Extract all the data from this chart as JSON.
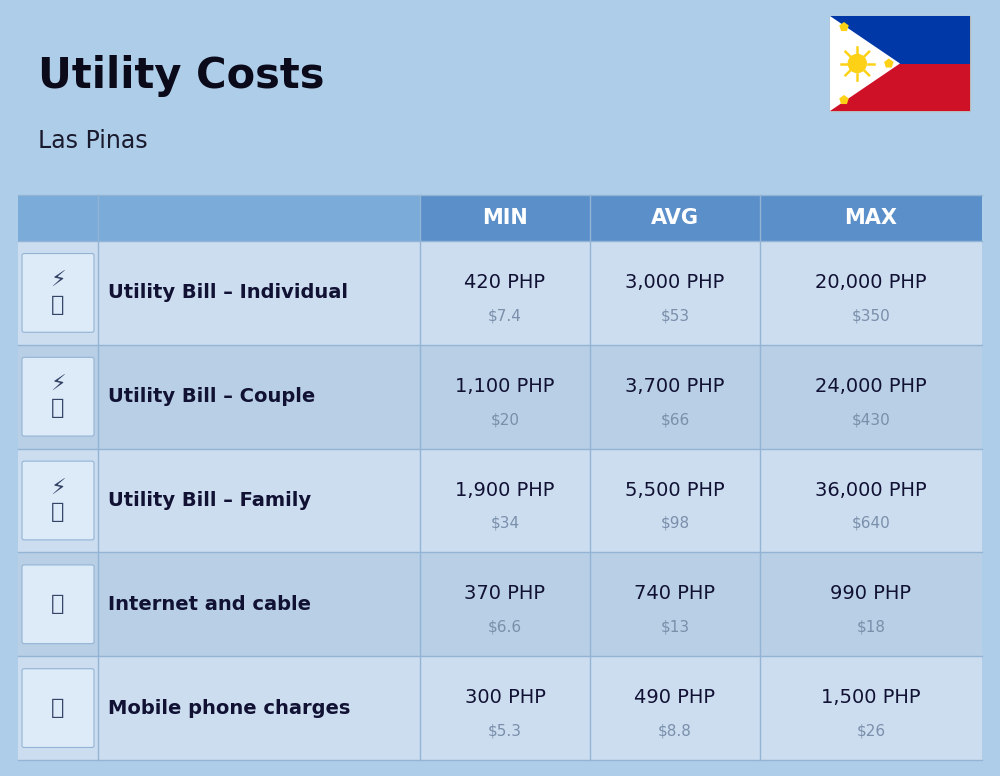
{
  "title": "Utility Costs",
  "subtitle": "Las Pinas",
  "bg_color": "#aecde8",
  "header_bg": "#5b8fc9",
  "header_text_color": "#ffffff",
  "row_bg_light": "#ccddf0",
  "row_bg_dark": "#b8cfe6",
  "cell_line_color": "#93b4d4",
  "col_headers": [
    "MIN",
    "AVG",
    "MAX"
  ],
  "rows": [
    {
      "label": "Utility Bill – Individual",
      "min_php": "420 PHP",
      "min_usd": "$7.4",
      "avg_php": "3,000 PHP",
      "avg_usd": "$53",
      "max_php": "20,000 PHP",
      "max_usd": "$350"
    },
    {
      "label": "Utility Bill – Couple",
      "min_php": "1,100 PHP",
      "min_usd": "$20",
      "avg_php": "3,700 PHP",
      "avg_usd": "$66",
      "max_php": "24,000 PHP",
      "max_usd": "$430"
    },
    {
      "label": "Utility Bill – Family",
      "min_php": "1,900 PHP",
      "min_usd": "$34",
      "avg_php": "5,500 PHP",
      "avg_usd": "$98",
      "max_php": "36,000 PHP",
      "max_usd": "$640"
    },
    {
      "label": "Internet and cable",
      "min_php": "370 PHP",
      "min_usd": "$6.6",
      "avg_php": "740 PHP",
      "avg_usd": "$13",
      "max_php": "990 PHP",
      "max_usd": "$18"
    },
    {
      "label": "Mobile phone charges",
      "min_php": "300 PHP",
      "min_usd": "$5.3",
      "avg_php": "490 PHP",
      "avg_usd": "$8.8",
      "max_php": "1,500 PHP",
      "max_usd": "$26"
    }
  ],
  "title_fontsize": 30,
  "subtitle_fontsize": 17,
  "header_fontsize": 15,
  "label_fontsize": 14,
  "value_fontsize": 14,
  "usd_fontsize": 11,
  "flag_blue": "#0038a8",
  "flag_red": "#ce1126",
  "flag_sun": "#fcd116"
}
